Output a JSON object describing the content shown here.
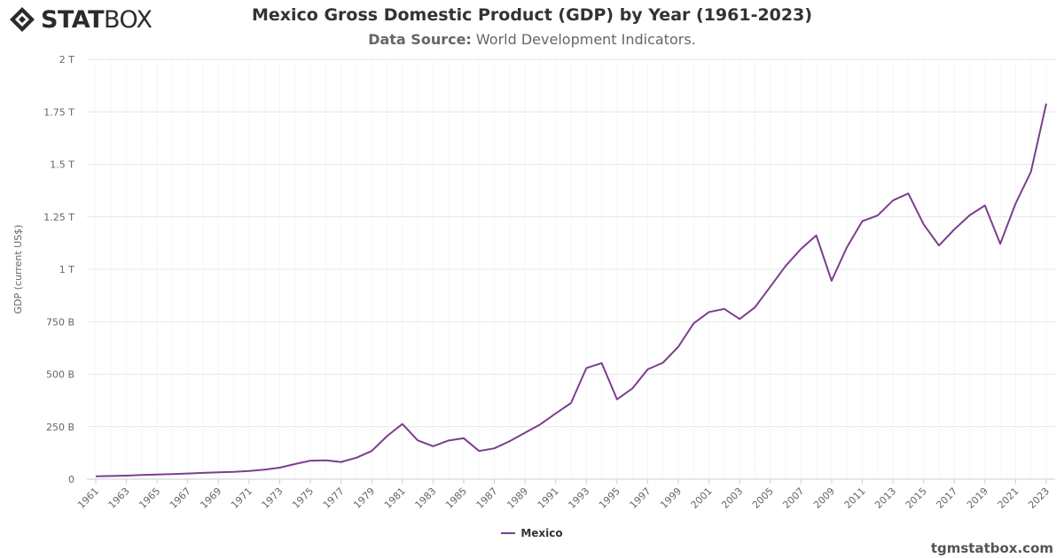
{
  "brand": {
    "logo_bold": "STAT",
    "logo_light": "BOX",
    "watermark": "tgmstatbox.com"
  },
  "header": {
    "title": "Mexico Gross Domestic Product (GDP) by Year (1961-2023)",
    "subtitle_label": "Data Source:",
    "subtitle_value": "World Development Indicators."
  },
  "colors": {
    "series": "#7b3f8c",
    "grid": "#e6e6e6",
    "brand": "#2b2b2b"
  },
  "chart_data": {
    "type": "line",
    "title": "Mexico Gross Domestic Product (GDP) by Year (1961-2023)",
    "ylabel": "GDP (current US$)",
    "xlabel": "",
    "ylim": [
      0,
      2000
    ],
    "y_unit": "billions of current US$",
    "y_ticks": [
      0,
      250,
      500,
      750,
      1000,
      1250,
      1500,
      1750,
      2000
    ],
    "y_tick_labels": [
      "0",
      "250 B",
      "500 B",
      "750 B",
      "1 T",
      "1.25 T",
      "1.5 T",
      "1.75 T",
      "2 T"
    ],
    "x_tick_labels": [
      "1961",
      "1963",
      "1965",
      "1967",
      "1969",
      "1971",
      "1973",
      "1975",
      "1977",
      "1979",
      "1981",
      "1983",
      "1985",
      "1987",
      "1989",
      "1991",
      "1993",
      "1995",
      "1997",
      "1999",
      "2001",
      "2003",
      "2005",
      "2007",
      "2009",
      "2011",
      "2013",
      "2015",
      "2017",
      "2019",
      "2021",
      "2023"
    ],
    "grid": true,
    "legend_position": "bottom-center",
    "x": [
      1961,
      1962,
      1963,
      1964,
      1965,
      1966,
      1967,
      1968,
      1969,
      1970,
      1971,
      1972,
      1973,
      1974,
      1975,
      1976,
      1977,
      1978,
      1979,
      1980,
      1981,
      1982,
      1983,
      1984,
      1985,
      1986,
      1987,
      1988,
      1989,
      1990,
      1991,
      1992,
      1993,
      1994,
      1995,
      1996,
      1997,
      1998,
      1999,
      2000,
      2001,
      2002,
      2003,
      2004,
      2005,
      2006,
      2007,
      2008,
      2009,
      2010,
      2011,
      2012,
      2013,
      2014,
      2015,
      2016,
      2017,
      2018,
      2019,
      2020,
      2021,
      2022,
      2023
    ],
    "series": [
      {
        "name": "Mexico",
        "values": [
          14,
          15,
          17,
          20,
          22,
          24,
          27,
          30,
          33,
          35,
          39,
          45,
          55,
          72,
          88,
          90,
          82,
          102,
          134,
          205,
          263,
          185,
          157,
          184,
          195,
          134,
          147,
          181,
          221,
          261,
          313,
          363,
          529,
          553,
          380,
          432,
          523,
          555,
          631,
          742,
          796,
          811,
          763,
          819,
          917,
          1016,
          1097,
          1161,
          945,
          1105,
          1229,
          1256,
          1328,
          1361,
          1214,
          1113,
          1190,
          1257,
          1304,
          1121,
          1313,
          1464,
          1789
        ]
      }
    ]
  }
}
